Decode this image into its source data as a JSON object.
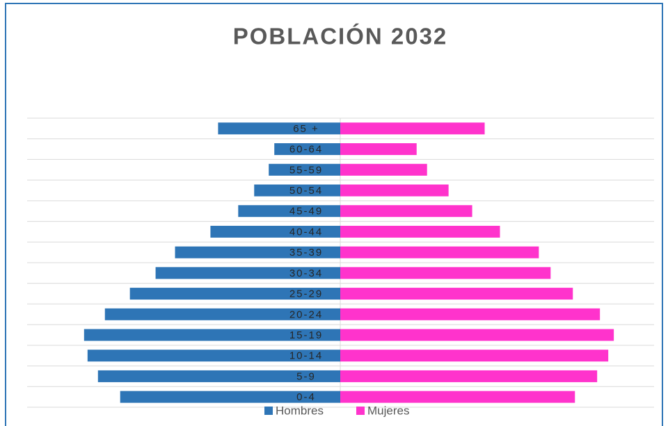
{
  "chart_data": {
    "type": "pyramid",
    "title": "POBLACIÓN 2032",
    "categories": [
      "0-4",
      "5-9",
      "10-14",
      "15-19",
      "20-24",
      "25-29",
      "30-34",
      "35-39",
      "40-44",
      "45-49",
      "50-54",
      "55-59",
      "60-64",
      "65 +"
    ],
    "series": [
      {
        "name": "Hombres",
        "color": "#2e75b6",
        "values": [
          317,
          349,
          364,
          369,
          339,
          303,
          266,
          238,
          187,
          147,
          124,
          103,
          95,
          176
        ]
      },
      {
        "name": "Mujeres",
        "color": "#ff33cc",
        "values": [
          338,
          370,
          386,
          394,
          374,
          335,
          303,
          286,
          230,
          190,
          156,
          125,
          110,
          208
        ]
      }
    ],
    "xlim": [
      0,
      451
    ],
    "grid": true,
    "legend": "bottom"
  }
}
